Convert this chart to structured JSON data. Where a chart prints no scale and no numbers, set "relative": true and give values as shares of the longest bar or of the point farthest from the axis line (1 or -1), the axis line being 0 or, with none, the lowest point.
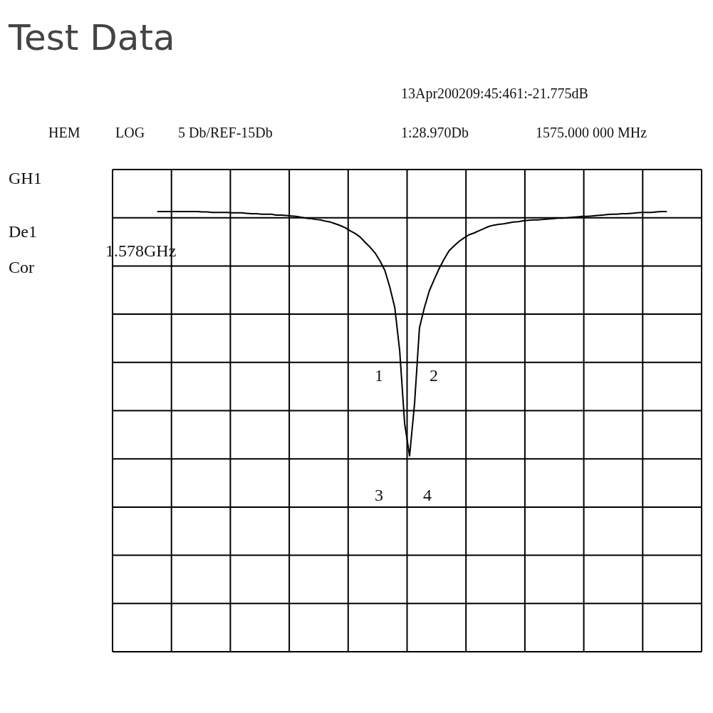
{
  "chart_data": {
    "type": "line",
    "title": "Test Data",
    "relative": true,
    "grid": true,
    "categories": [
      null,
      null,
      null,
      null,
      null,
      null,
      null,
      null,
      null,
      null,
      null,
      null,
      null,
      null,
      null,
      null,
      null,
      null,
      null,
      null,
      null,
      null,
      null,
      null,
      null,
      null,
      null,
      null,
      null,
      null,
      null,
      null,
      null,
      null,
      null,
      null,
      null,
      null,
      null,
      null,
      null,
      null,
      null,
      null,
      null,
      null,
      null,
      null,
      null,
      null,
      null,
      null,
      null,
      null,
      null,
      null,
      null,
      null,
      null,
      null,
      null,
      null,
      null,
      null,
      null,
      null,
      null,
      null,
      null,
      null,
      null,
      null,
      null,
      null,
      null,
      null,
      null,
      null,
      null,
      null,
      null,
      null,
      null,
      null,
      null,
      null,
      null,
      null,
      null,
      null,
      null,
      null,
      null,
      null,
      null,
      null,
      null,
      null,
      null,
      null,
      null,
      null,
      null,
      null
    ],
    "series": [
      {
        "color": "#000000",
        "values": [
          1.0,
          1.0,
          1.0,
          1.0,
          1.0,
          1.0,
          1.0,
          1.0,
          1.0,
          0.999,
          0.999,
          0.998,
          0.998,
          0.998,
          0.998,
          0.997,
          0.997,
          0.997,
          0.996,
          0.995,
          0.995,
          0.994,
          0.994,
          0.994,
          0.992,
          0.992,
          0.991,
          0.99,
          0.989,
          0.987,
          0.985,
          0.984,
          0.982,
          0.981,
          0.978,
          0.976,
          0.972,
          0.968,
          0.963,
          0.956,
          0.95,
          0.942,
          0.93,
          0.919,
          0.906,
          0.888,
          0.866,
          0.828,
          0.782,
          0.683,
          0.518,
          0.445,
          0.563,
          0.736,
          0.782,
          0.82,
          0.846,
          0.871,
          0.892,
          0.911,
          0.922,
          0.932,
          0.94,
          0.947,
          0.951,
          0.956,
          0.961,
          0.966,
          0.969,
          0.971,
          0.972,
          0.974,
          0.976,
          0.977,
          0.979,
          0.98,
          0.981,
          0.981,
          0.982,
          0.983,
          0.984,
          0.985,
          0.985,
          0.986,
          0.987,
          0.988,
          0.989,
          0.989,
          0.99,
          0.991,
          0.992,
          0.993,
          0.994,
          0.994,
          0.995,
          0.995,
          0.996,
          0.997,
          0.998,
          0.998,
          0.998,
          0.999,
          1.0,
          1.0
        ]
      }
    ],
    "annotations": [
      "13Apr200209:45:461:-21.775dB",
      "HEM",
      "LOG",
      "5 Db/REF-15Db",
      "1:28.970Db",
      "1575.000 000 MHz",
      "GH1",
      "De1",
      "Cor",
      "1.578GHz",
      "3",
      "4",
      "1",
      "2"
    ]
  }
}
